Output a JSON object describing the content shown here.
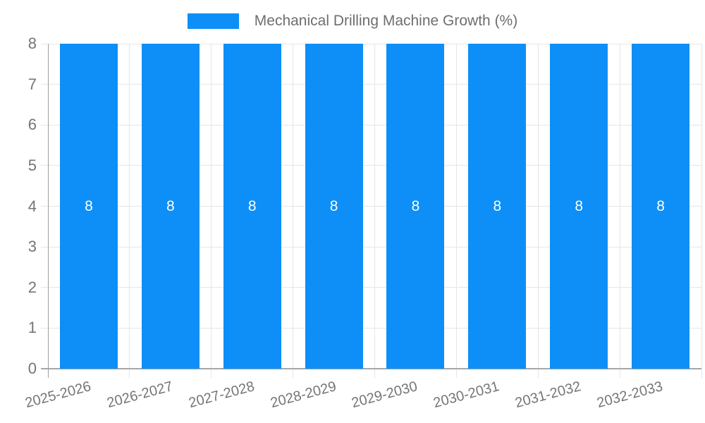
{
  "chart_data": {
    "type": "bar",
    "title": "Mechanical Drilling Machine Growth (%)",
    "categories": [
      "2025-2026",
      "2026-2027",
      "2027-2028",
      "2028-2029",
      "2029-2030",
      "2030-2031",
      "2031-2032",
      "2032-2033"
    ],
    "values": [
      8,
      8,
      8,
      8,
      8,
      8,
      8,
      8
    ],
    "bar_labels": [
      "8",
      "8",
      "8",
      "8",
      "8",
      "8",
      "8",
      "8"
    ],
    "xlabel": "",
    "ylabel": "",
    "ylim": [
      0,
      8
    ],
    "yticks": [
      0,
      1,
      2,
      3,
      4,
      5,
      6,
      7,
      8
    ],
    "grid": "on",
    "legend": {
      "position": "top-center",
      "label": "Mechanical Drilling Machine Growth (%)"
    },
    "colors": {
      "bar": "#0d8ff7",
      "bar_value_label": "#ffffff",
      "gridline": "#e6e6e6",
      "axis_line": "#a6a6a6",
      "tick_label": "#757575",
      "legend_text": "#6e6e6e",
      "background": "#ffffff"
    }
  }
}
